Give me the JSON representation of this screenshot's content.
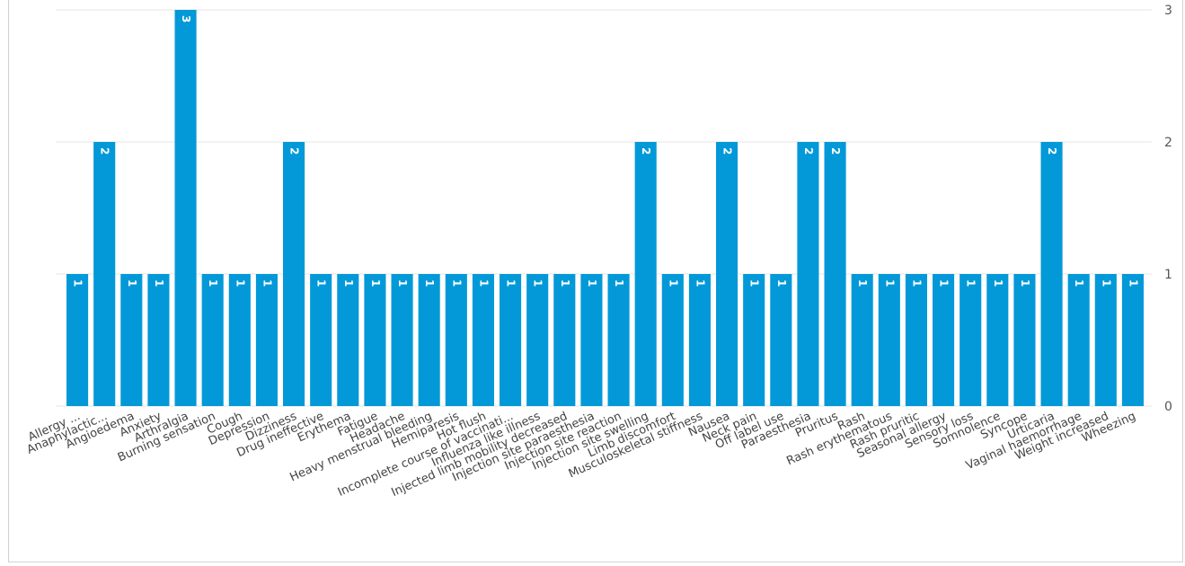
{
  "chart_data": {
    "type": "bar",
    "categories": [
      "Allergy ...",
      "Anaphylactic...",
      "Angioedema",
      "Anxiety",
      "Arthralgia",
      "Burning sensation",
      "Cough",
      "Depression",
      "Dizziness",
      "Drug ineffective",
      "Erythema",
      "Fatigue",
      "Headache",
      "Heavy menstrual bleeding",
      "Hemiparesis",
      "Hot flush",
      "Incomplete course of vaccinati...",
      "Influenza like illness",
      "Injected limb mobility decreased",
      "Injection site paraesthesia",
      "Injection site reaction",
      "Injection site swelling",
      "Limb discomfort",
      "Musculoskeletal stiffness",
      "Nausea",
      "Neck pain",
      "Off label use",
      "Paraesthesia",
      "Pruritus",
      "Rash",
      "Rash erythematous",
      "Rash pruritic",
      "Seasonal allergy",
      "Sensory loss",
      "Somnolence",
      "Syncope",
      "Urticaria",
      "Vaginal haemorrhage",
      "Weight increased",
      "Wheezing"
    ],
    "values": [
      1,
      2,
      1,
      1,
      3,
      1,
      1,
      1,
      2,
      1,
      1,
      1,
      1,
      1,
      1,
      1,
      1,
      1,
      1,
      1,
      1,
      2,
      1,
      1,
      2,
      1,
      1,
      2,
      2,
      1,
      1,
      1,
      1,
      1,
      1,
      1,
      2,
      1,
      1,
      1
    ],
    "yticks": [
      "0",
      "1",
      "2",
      "3"
    ],
    "ylim": [
      0,
      3
    ],
    "grid": true,
    "y_axis_side": "right",
    "data_labels": true,
    "bar_color": "#0399d8",
    "title": "",
    "xlabel": "",
    "ylabel": ""
  }
}
